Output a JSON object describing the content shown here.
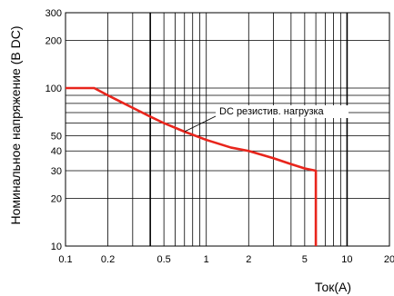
{
  "chart_data": {
    "type": "line",
    "title": "",
    "xlabel": "Ток(A)",
    "ylabel": "Номинальное напряжение (В DC)",
    "x_scale": "log",
    "y_scale": "log",
    "xlim": [
      0.1,
      20
    ],
    "ylim": [
      10,
      300
    ],
    "x_tick_labels": [
      "0.1",
      "0.2",
      "0.5",
      "1",
      "2",
      "5",
      "10",
      "20"
    ],
    "y_tick_labels": [
      "10",
      "20",
      "30",
      "40",
      "50",
      "100",
      "200",
      "300"
    ],
    "grid": true,
    "series": [
      {
        "name": "DC резистив. нагрузка",
        "color": "#e8251c",
        "points": [
          [
            0.1,
            100
          ],
          [
            0.16,
            100
          ],
          [
            0.2,
            90
          ],
          [
            0.3,
            75
          ],
          [
            0.4,
            66
          ],
          [
            0.5,
            60
          ],
          [
            0.7,
            53
          ],
          [
            1,
            47
          ],
          [
            1.5,
            42
          ],
          [
            2,
            40
          ],
          [
            3,
            36
          ],
          [
            4,
            33
          ],
          [
            5,
            31
          ],
          [
            6,
            30
          ],
          [
            6,
            10
          ]
        ]
      }
    ],
    "annotations": [
      {
        "text": "DC резистив. нагрузка",
        "target": [
          0.7,
          53
        ]
      }
    ]
  }
}
